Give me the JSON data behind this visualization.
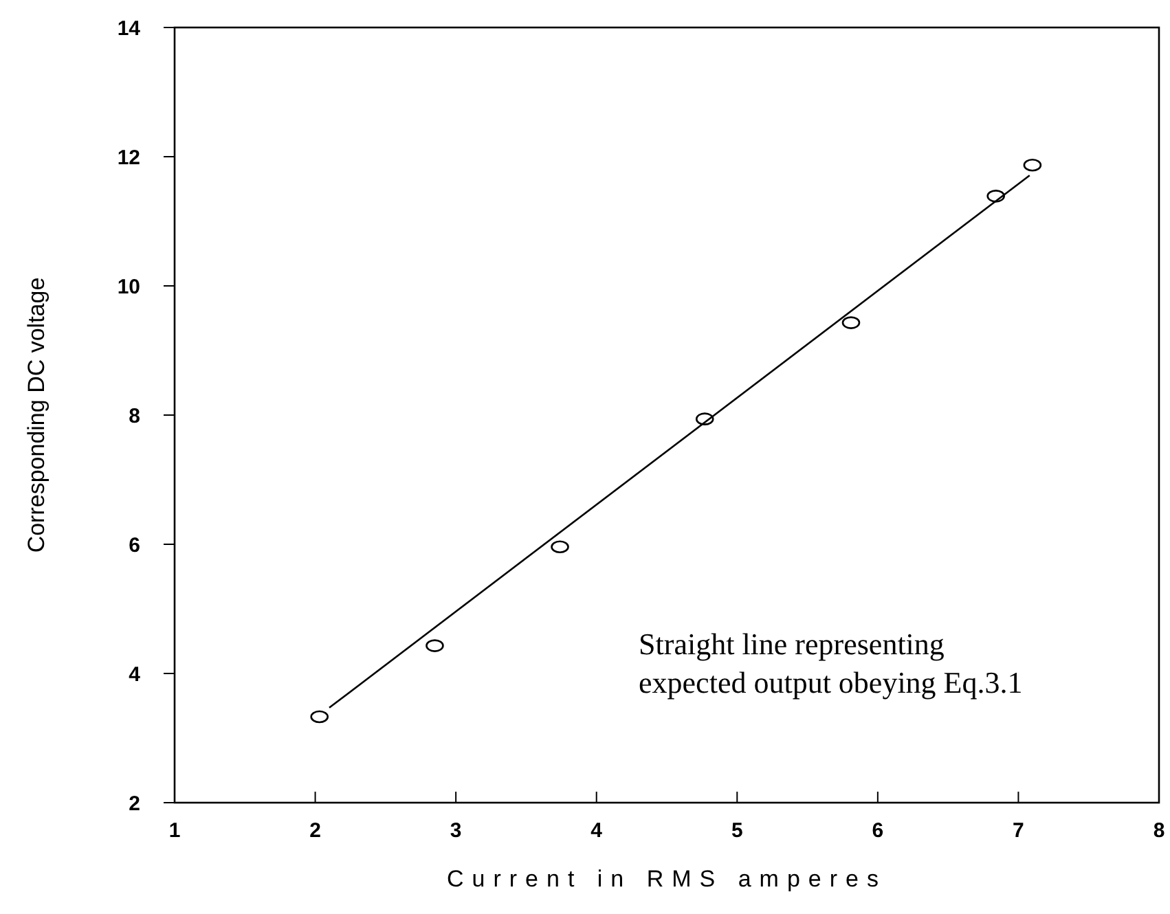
{
  "chart_data": {
    "type": "scatter",
    "xlabel": "Current in RMS amperes",
    "ylabel": "Corresponding DC voltage",
    "xlim": [
      1,
      8
    ],
    "xticks": [
      1,
      2,
      3,
      4,
      5,
      6,
      7,
      8
    ],
    "ylim": [
      2,
      14
    ],
    "yticks": [
      2,
      4,
      6,
      8,
      10,
      12,
      14
    ],
    "grid": false,
    "series": [
      {
        "marker": "circle",
        "color": "#000000",
        "x": [
          2.03,
          2.85,
          3.74,
          4.77,
          5.81,
          6.84,
          7.1
        ],
        "values": [
          3.33,
          4.43,
          5.96,
          7.94,
          9.43,
          11.39,
          11.87
        ]
      },
      {
        "type": "line",
        "marker": "none",
        "line_style": "solid",
        "color": "#000000",
        "x": [
          2.1,
          7.08
        ],
        "values": [
          3.47,
          11.71
        ]
      }
    ],
    "annotations": [
      "Straight line representing\nexpected output obeying Eq.3.1"
    ]
  }
}
